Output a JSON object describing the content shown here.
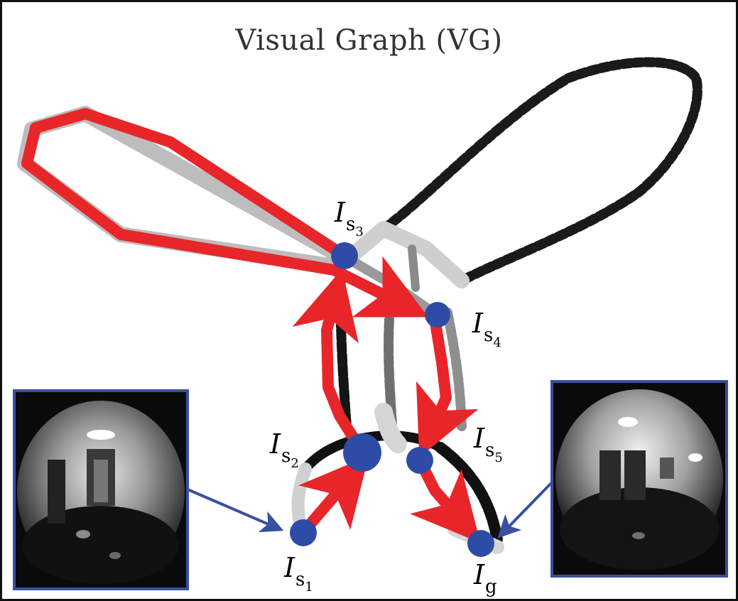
{
  "title": "Visual Graph (VG)",
  "nodes": {
    "s1": {
      "base": "I",
      "sub": "s",
      "num": "1"
    },
    "s2": {
      "base": "I",
      "sub": "s",
      "num": "2"
    },
    "s3": {
      "base": "I",
      "sub": "s",
      "num": "3"
    },
    "s4": {
      "base": "I",
      "sub": "s",
      "num": "4"
    },
    "s5": {
      "base": "I",
      "sub": "s",
      "num": "5"
    },
    "g": {
      "base": "I",
      "sub": "g",
      "num": ""
    }
  },
  "colors": {
    "path": "#e8262a",
    "node": "#2e4ca6",
    "pointer": "#3a4fa0",
    "graph_dark": "#111111",
    "graph_mid": "#777777",
    "graph_light": "#cccccc"
  },
  "images": {
    "left": "fisheye-corridor-image",
    "right": "fisheye-room-image"
  }
}
